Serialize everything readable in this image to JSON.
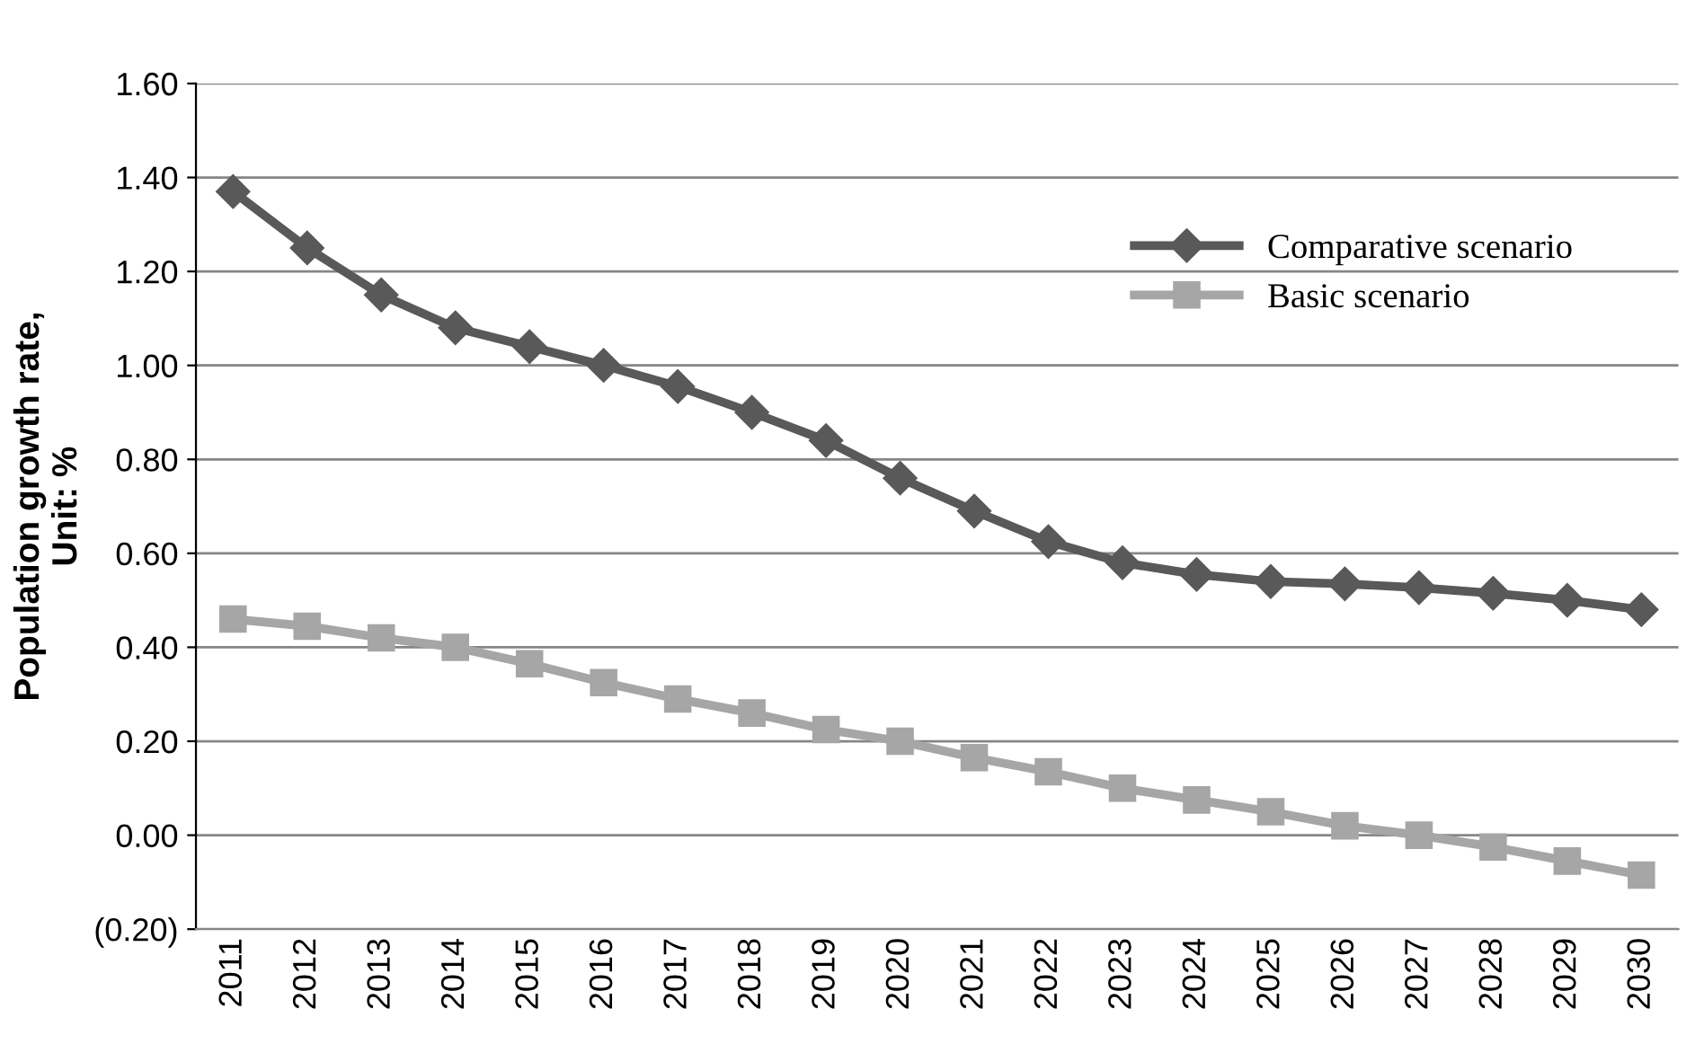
{
  "chart_data": {
    "type": "line",
    "ylabel": "Population growth rate,\nUnit: %",
    "categories": [
      "2011",
      "2012",
      "2013",
      "2014",
      "2015",
      "2016",
      "2017",
      "2018",
      "2019",
      "2020",
      "2021",
      "2022",
      "2023",
      "2024",
      "2025",
      "2026",
      "2027",
      "2028",
      "2029",
      "2030"
    ],
    "series": [
      {
        "name": "Comparative scenario",
        "color": "#595959",
        "marker": "diamond",
        "values": [
          1.37,
          1.25,
          1.15,
          1.08,
          1.04,
          1.0,
          0.955,
          0.9,
          0.84,
          0.76,
          0.69,
          0.625,
          0.58,
          0.555,
          0.54,
          0.535,
          0.527,
          0.515,
          0.5,
          0.48
        ]
      },
      {
        "name": "Basic scenario",
        "color": "#a6a6a6",
        "marker": "square",
        "values": [
          0.46,
          0.445,
          0.42,
          0.4,
          0.365,
          0.325,
          0.29,
          0.26,
          0.225,
          0.2,
          0.165,
          0.135,
          0.1,
          0.075,
          0.05,
          0.02,
          0.0,
          -0.025,
          -0.055,
          -0.085
        ]
      }
    ],
    "ylim": [
      -0.2,
      1.6
    ],
    "yticks": [
      {
        "value": -0.2,
        "label": "(0.20)"
      },
      {
        "value": 0,
        "label": "0.00"
      },
      {
        "value": 0.2,
        "label": "0.20"
      },
      {
        "value": 0.4,
        "label": "0.40"
      },
      {
        "value": 0.6,
        "label": "0.60"
      },
      {
        "value": 0.8,
        "label": "0.80"
      },
      {
        "value": 1.0,
        "label": "1.00"
      },
      {
        "value": 1.2,
        "label": "1.20"
      },
      {
        "value": 1.4,
        "label": "1.40"
      },
      {
        "value": 1.6,
        "label": "1.60"
      }
    ],
    "grid": "y",
    "legend": "top right",
    "line_style": "solid"
  }
}
